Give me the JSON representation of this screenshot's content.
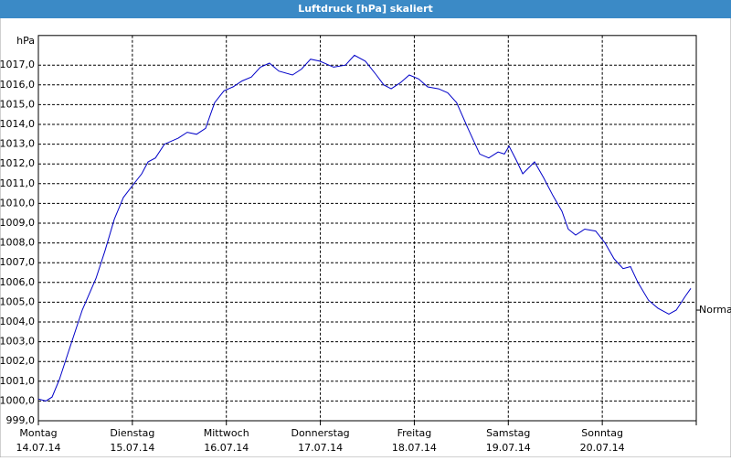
{
  "chart_data": {
    "type": "line",
    "title": "Luftdruck [hPa] skaliert",
    "unit_label": "hPa",
    "xlim": [
      0,
      168
    ],
    "xticks": [
      {
        "value": 0,
        "label": "Montag",
        "sublabel": "14.07.14"
      },
      {
        "value": 24,
        "label": "Dienstag",
        "sublabel": "15.07.14"
      },
      {
        "value": 48,
        "label": "Mittwoch",
        "sublabel": "16.07.14"
      },
      {
        "value": 72,
        "label": "Donnerstag",
        "sublabel": "17.07.14"
      },
      {
        "value": 96,
        "label": "Freitag",
        "sublabel": "18.07.14"
      },
      {
        "value": 120,
        "label": "Samstag",
        "sublabel": "19.07.14"
      },
      {
        "value": 144,
        "label": "Sonntag",
        "sublabel": "20.07.14"
      },
      {
        "value": 168,
        "label": null,
        "sublabel": null
      }
    ],
    "ylim": [
      999,
      1018.5
    ],
    "yticks": [
      {
        "value": 999,
        "label": "999,0"
      },
      {
        "value": 1000,
        "label": "1000,0"
      },
      {
        "value": 1001,
        "label": "1001,0"
      },
      {
        "value": 1002,
        "label": "1002,0"
      },
      {
        "value": 1003,
        "label": "1003,0"
      },
      {
        "value": 1004,
        "label": "1004,0"
      },
      {
        "value": 1005,
        "label": "1005,0"
      },
      {
        "value": 1006,
        "label": "1006,0"
      },
      {
        "value": 1007,
        "label": "1007,0"
      },
      {
        "value": 1008,
        "label": "1008,0"
      },
      {
        "value": 1009,
        "label": "1009,0"
      },
      {
        "value": 1010,
        "label": "1010,0"
      },
      {
        "value": 1011,
        "label": "1011,0"
      },
      {
        "value": 1012,
        "label": "1012,0"
      },
      {
        "value": 1013,
        "label": "1013,0"
      },
      {
        "value": 1014,
        "label": "1014,0"
      },
      {
        "value": 1015,
        "label": "1015,0"
      },
      {
        "value": 1016,
        "label": "1016,0"
      },
      {
        "value": 1017,
        "label": "1017,0"
      }
    ],
    "grid": true,
    "annotation": {
      "text": "Normal",
      "value": 1004.6
    },
    "series": [
      {
        "color": "#0000c8",
        "x": [
          0,
          1.9,
          3.5,
          5.4,
          7.7,
          11.2,
          14.7,
          17.0,
          19.4,
          21.7,
          24.0,
          26.4,
          28.0,
          29.9,
          32.2,
          35.7,
          38.0,
          40.4,
          42.7,
          45.0,
          47.4,
          49.7,
          52.0,
          54.4,
          56.7,
          59.0,
          61.4,
          64.9,
          67.2,
          69.5,
          71.9,
          75.4,
          78.4,
          80.7,
          83.5,
          86.3,
          88.2,
          90.1,
          92.4,
          94.7,
          97.1,
          99.4,
          102.2,
          104.5,
          106.8,
          109.7,
          112.7,
          115.0,
          117.4,
          119.0,
          120.2,
          122.0,
          123.7,
          126.7,
          129.0,
          131.4,
          133.7,
          135.3,
          137.2,
          139.5,
          142.3,
          144.7,
          147.0,
          149.3,
          151.2,
          153.1,
          155.8,
          158.2,
          161.0,
          162.9,
          165.2,
          166.6
        ],
        "values": [
          1000.1,
          1000.0,
          1000.2,
          1001.1,
          1002.5,
          1004.6,
          1006.2,
          1007.6,
          1009.2,
          1010.3,
          1010.9,
          1011.5,
          1012.1,
          1012.3,
          1013.0,
          1013.3,
          1013.6,
          1013.5,
          1013.8,
          1015.1,
          1015.7,
          1015.9,
          1016.2,
          1016.4,
          1016.9,
          1017.1,
          1016.7,
          1016.5,
          1016.8,
          1017.3,
          1017.2,
          1016.9,
          1017.0,
          1017.5,
          1017.2,
          1016.5,
          1016.0,
          1015.8,
          1016.1,
          1016.5,
          1016.3,
          1015.9,
          1015.8,
          1015.6,
          1015.1,
          1013.8,
          1012.5,
          1012.3,
          1012.6,
          1012.5,
          1012.9,
          1012.2,
          1011.5,
          1012.1,
          1011.3,
          1010.4,
          1009.6,
          1008.7,
          1008.4,
          1008.7,
          1008.6,
          1008.0,
          1007.2,
          1006.7,
          1006.8,
          1006.0,
          1005.1,
          1004.7,
          1004.4,
          1004.6,
          1005.3,
          1005.7
        ]
      }
    ]
  }
}
